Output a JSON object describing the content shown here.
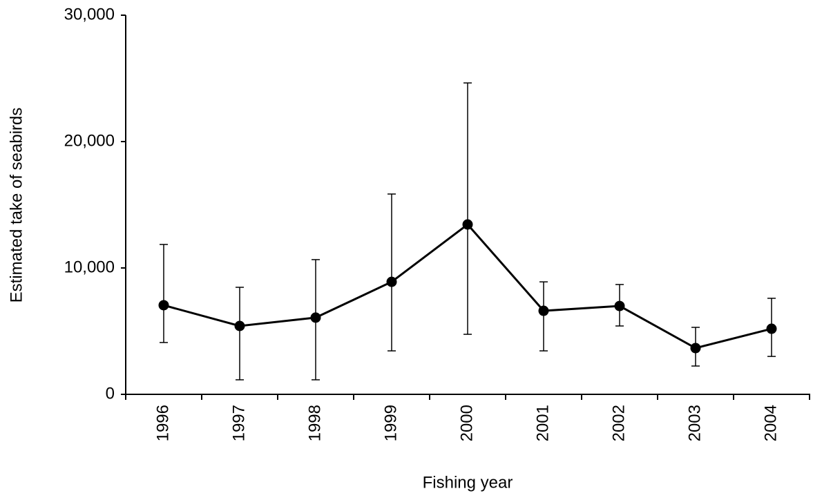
{
  "chart_data": {
    "type": "line",
    "x_label": "Fishing year",
    "y_label": "Estimated take of seabirds",
    "categories": [
      "1996",
      "1997",
      "1998",
      "1999",
      "2000",
      "2001",
      "2002",
      "2003",
      "2004"
    ],
    "values": [
      7050,
      5410,
      6070,
      8900,
      13440,
      6610,
      6990,
      3660,
      5190
    ],
    "lower": [
      4100,
      1150,
      1150,
      3440,
      4750,
      3440,
      5410,
      2240,
      3000
    ],
    "upper": [
      11860,
      8470,
      10660,
      15850,
      24640,
      8900,
      8690,
      5300,
      7600
    ],
    "color": "#000000",
    "ylim": [
      0,
      30000
    ],
    "yticks": [
      0,
      {
        "value": 10000,
        "label": "10,000"
      },
      {
        "value": 20000,
        "label": "20,000"
      },
      {
        "value": 30000,
        "label": "30,000"
      }
    ]
  }
}
